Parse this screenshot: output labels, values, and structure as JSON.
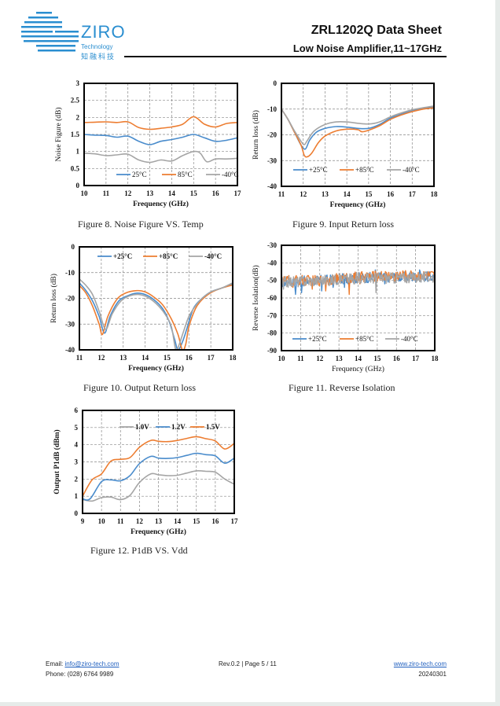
{
  "header": {
    "logo_text": "ZIRO",
    "logo_sub": "Technology",
    "logo_cn": "知融科技",
    "title": "ZRL1202Q Data Sheet",
    "subtitle": "Low Noise Amplifier,11~17GHz"
  },
  "colors": {
    "blue": "#4a8ccc",
    "orange": "#ed7d31",
    "gray": "#a5a5a5",
    "brand": "#2a8ed0"
  },
  "chart_data": [
    {
      "id": "nf",
      "type": "line",
      "caption": "Figure 8. Noise Figure VS. Temp",
      "xlabel": "Frequency (GHz)",
      "ylabel": "Noise Figure (dB)",
      "xlim": [
        10,
        17
      ],
      "ylim": [
        0,
        3
      ],
      "xticks": [
        10,
        11,
        12,
        13,
        14,
        15,
        16,
        17
      ],
      "yticks": [
        0,
        0.5,
        1,
        1.5,
        2,
        2.5,
        3
      ],
      "ytick_labels": [
        "0",
        "0.5",
        "1",
        "1.5",
        "2",
        "2.5",
        "3"
      ],
      "grid": true,
      "legend": "bottom",
      "series": [
        {
          "name": "25°C",
          "color": "#4a8ccc",
          "x": [
            10,
            10.5,
            11,
            11.5,
            12,
            12.5,
            13,
            13.5,
            14,
            14.5,
            15,
            15.5,
            16,
            16.5,
            17
          ],
          "y": [
            1.5,
            1.48,
            1.47,
            1.42,
            1.45,
            1.3,
            1.2,
            1.3,
            1.35,
            1.42,
            1.5,
            1.4,
            1.3,
            1.33,
            1.4
          ]
        },
        {
          "name": "85°C",
          "color": "#ed7d31",
          "x": [
            10,
            10.5,
            11,
            11.5,
            12,
            12.5,
            13,
            13.5,
            14,
            14.5,
            15,
            15.5,
            16,
            16.5,
            17
          ],
          "y": [
            1.85,
            1.86,
            1.87,
            1.85,
            1.87,
            1.7,
            1.65,
            1.68,
            1.72,
            1.8,
            2.02,
            1.8,
            1.72,
            1.82,
            1.85
          ]
        },
        {
          "name": "-40°C",
          "color": "#a5a5a5",
          "x": [
            10,
            10.5,
            11,
            11.5,
            12,
            12.5,
            13,
            13.5,
            14,
            14.5,
            15,
            15.3,
            15.6,
            16,
            16.5,
            17
          ],
          "y": [
            0.95,
            0.93,
            0.88,
            0.9,
            0.92,
            0.75,
            0.68,
            0.75,
            0.72,
            0.88,
            1.0,
            0.95,
            0.7,
            0.78,
            0.78,
            0.8
          ]
        }
      ],
      "legend_style": "normal"
    },
    {
      "id": "irl",
      "type": "line",
      "caption": "Figure 9. Input Return loss",
      "xlabel": "Frequency (GHz)",
      "ylabel": "Return loss (dB)",
      "xlim": [
        11,
        18
      ],
      "ylim": [
        -40,
        0
      ],
      "xticks": [
        11,
        12,
        13,
        14,
        15,
        16,
        17,
        18
      ],
      "yticks": [
        -40,
        -30,
        -20,
        -10,
        0
      ],
      "ytick_labels": [
        "-40",
        "-30",
        "-20",
        "-10",
        "0"
      ],
      "grid": true,
      "legend": "bottom",
      "series": [
        {
          "name": "+25°C",
          "color": "#4a8ccc",
          "x": [
            11,
            11.3,
            11.6,
            11.9,
            12.1,
            12.3,
            12.6,
            13,
            13.5,
            14,
            14.5,
            15,
            15.5,
            16,
            16.5,
            17,
            17.5,
            18
          ],
          "y": [
            -10,
            -14,
            -19,
            -24,
            -25.5,
            -22,
            -19,
            -17.5,
            -16.8,
            -17,
            -17.5,
            -17.5,
            -16,
            -13.5,
            -12,
            -10.5,
            -9.8,
            -9.2
          ]
        },
        {
          "name": "+85°C",
          "color": "#ed7d31",
          "x": [
            11,
            11.3,
            11.6,
            11.9,
            12.05,
            12.2,
            12.4,
            12.7,
            13,
            13.5,
            14,
            14.5,
            14.7,
            15,
            15.5,
            16,
            16.5,
            17,
            17.5,
            18
          ],
          "y": [
            -10,
            -14,
            -19,
            -24,
            -28,
            -28.5,
            -27,
            -23,
            -20.5,
            -18.5,
            -17.8,
            -18,
            -18.8,
            -18.2,
            -16.5,
            -14,
            -12.3,
            -11,
            -10,
            -9.5
          ]
        },
        {
          "name": "-40°C",
          "color": "#a5a5a5",
          "x": [
            11,
            11.3,
            11.6,
            11.9,
            12.05,
            12.2,
            12.5,
            13,
            13.5,
            14,
            14.5,
            15,
            15.5,
            16,
            16.5,
            17,
            17.5,
            18
          ],
          "y": [
            -10,
            -14,
            -18.5,
            -22.5,
            -23.8,
            -22,
            -18.5,
            -16,
            -15,
            -15,
            -15.5,
            -15.8,
            -15,
            -13,
            -11.5,
            -10.3,
            -9.5,
            -8.8
          ]
        }
      ],
      "legend_style": "normal"
    },
    {
      "id": "orl",
      "type": "line",
      "caption": "Figure 10. Output Return loss",
      "xlabel": "Frequency (GHz)",
      "ylabel": "Return loss (dB)",
      "xlim": [
        11,
        18
      ],
      "ylim": [
        -40,
        0
      ],
      "xticks": [
        11,
        12,
        13,
        14,
        15,
        16,
        17,
        18
      ],
      "yticks": [
        -40,
        -30,
        -20,
        -10,
        0
      ],
      "ytick_labels": [
        "-40",
        "-30",
        "-20",
        "-10",
        "0"
      ],
      "grid": true,
      "legend": "top",
      "series": [
        {
          "name": "+25°C",
          "color": "#4a8ccc",
          "x": [
            11,
            11.3,
            11.6,
            11.9,
            12.15,
            12.4,
            12.8,
            13.2,
            13.6,
            14,
            14.4,
            14.8,
            15.1,
            15.35,
            15.5,
            15.7,
            15.9,
            16.2,
            16.6,
            17,
            17.5,
            18
          ],
          "y": [
            -14,
            -17,
            -21,
            -27,
            -33.5,
            -27,
            -21,
            -19,
            -18,
            -18.5,
            -20.5,
            -24,
            -29,
            -36,
            -40,
            -37,
            -32,
            -24,
            -20,
            -17.5,
            -16,
            -14.5
          ]
        },
        {
          "name": "+85°C",
          "color": "#ed7d31",
          "x": [
            11,
            11.3,
            11.6,
            11.9,
            12.05,
            12.3,
            12.7,
            13.1,
            13.6,
            14,
            14.4,
            14.8,
            15.2,
            15.5,
            15.7,
            15.85,
            16,
            16.3,
            16.6,
            17,
            17.5,
            18
          ],
          "y": [
            -15,
            -18,
            -23,
            -30,
            -34,
            -27,
            -20.5,
            -18,
            -17,
            -17.5,
            -19.5,
            -22.5,
            -28,
            -34,
            -40,
            -38,
            -31,
            -24,
            -20.5,
            -17.8,
            -16,
            -14.8
          ]
        },
        {
          "name": "-40°C",
          "color": "#a5a5a5",
          "x": [
            11,
            11.3,
            11.6,
            11.9,
            12.2,
            12.5,
            12.9,
            13.3,
            13.7,
            14.1,
            14.5,
            14.9,
            15.2,
            15.4,
            15.55,
            15.75,
            16,
            16.3,
            16.6,
            17,
            17.5,
            18
          ],
          "y": [
            -12.5,
            -15,
            -18.5,
            -25,
            -32,
            -26,
            -21,
            -19,
            -18.5,
            -19.5,
            -22,
            -26,
            -31,
            -40,
            -38,
            -33,
            -27,
            -23,
            -20,
            -17.5,
            -16,
            -14
          ]
        }
      ],
      "legend_style": "bold"
    },
    {
      "id": "iso",
      "type": "line",
      "caption": "Figure 11. Reverse Isolation",
      "xlabel": "Frequency (GHz)",
      "ylabel": "Reverse Isolation(dB)",
      "xlim": [
        10,
        18
      ],
      "ylim": [
        -90,
        -30
      ],
      "xticks": [
        10,
        11,
        12,
        13,
        14,
        15,
        16,
        17,
        18
      ],
      "yticks": [
        -90,
        -80,
        -70,
        -60,
        -50,
        -40,
        -30
      ],
      "ytick_labels": [
        "-90",
        "-80",
        "-70",
        "-60",
        "-50",
        "-40",
        "-30"
      ],
      "grid": true,
      "legend": "bottom",
      "noisy": true,
      "series": [
        {
          "name": "+25°C",
          "color": "#4a8ccc",
          "trend": [
            [
              10,
              -51
            ],
            [
              12,
              -50
            ],
            [
              14,
              -48.5
            ],
            [
              16,
              -48
            ],
            [
              18,
              -48
            ]
          ],
          "spikes": [
            [
              10.75,
              -58
            ],
            [
              11.05,
              -57
            ],
            [
              12.1,
              -56
            ],
            [
              12.7,
              -54
            ],
            [
              13.3,
              -54
            ],
            [
              14.9,
              -44
            ],
            [
              15.4,
              -52
            ],
            [
              17.2,
              -44
            ]
          ],
          "amp": 3
        },
        {
          "name": "+85°C",
          "color": "#ed7d31",
          "trend": [
            [
              10,
              -50
            ],
            [
              12,
              -50
            ],
            [
              14,
              -48
            ],
            [
              16,
              -47
            ],
            [
              18,
              -47.5
            ]
          ],
          "spikes": [
            [
              10.6,
              -54
            ],
            [
              11.6,
              -55
            ],
            [
              12.3,
              -56
            ],
            [
              12.9,
              -51
            ],
            [
              13.55,
              -58
            ],
            [
              14.1,
              -52
            ],
            [
              15.9,
              -51
            ]
          ],
          "amp": 3
        },
        {
          "name": "-40°C",
          "color": "#a5a5a5",
          "trend": [
            [
              10,
              -51
            ],
            [
              12,
              -50
            ],
            [
              14,
              -48.5
            ],
            [
              16,
              -48.5
            ],
            [
              18,
              -48
            ]
          ],
          "spikes": [
            [
              10.1,
              -55
            ],
            [
              11.2,
              -53
            ],
            [
              12.5,
              -53
            ],
            [
              13.8,
              -52
            ],
            [
              14.95,
              -57
            ],
            [
              16.5,
              -51
            ]
          ],
          "amp": 3.2
        }
      ],
      "legend_style": "normal"
    },
    {
      "id": "p1db",
      "type": "line",
      "caption": "Figure 12. P1dB VS. Vdd",
      "xlabel": "Frequency (GHz)",
      "ylabel": "Output P1dB (dBm)",
      "xlim": [
        9,
        17
      ],
      "ylim": [
        0,
        6
      ],
      "xticks": [
        9,
        10,
        11,
        12,
        13,
        14,
        15,
        16,
        17
      ],
      "yticks": [
        0,
        1,
        2,
        3,
        4,
        5,
        6
      ],
      "ytick_labels": [
        "0",
        "1",
        "2",
        "3",
        "4",
        "5",
        "6"
      ],
      "grid": true,
      "legend": "top-right",
      "series": [
        {
          "name": "1.0V",
          "color": "#a5a5a5",
          "x": [
            9,
            9.5,
            10,
            10.5,
            11,
            11.5,
            12,
            12.6,
            13,
            13.5,
            14,
            14.5,
            15,
            15.5,
            16,
            16.5,
            17
          ],
          "y": [
            0.8,
            0.72,
            0.92,
            0.95,
            0.8,
            1.05,
            1.8,
            2.3,
            2.25,
            2.2,
            2.22,
            2.35,
            2.48,
            2.45,
            2.4,
            2.0,
            1.7
          ]
        },
        {
          "name": "1.2V",
          "color": "#4a8ccc",
          "x": [
            9,
            9.4,
            10,
            10.5,
            11,
            11.5,
            12,
            12.6,
            13,
            13.5,
            14,
            14.5,
            15,
            15.5,
            16,
            16.5,
            17
          ],
          "y": [
            0.85,
            0.85,
            1.85,
            1.95,
            1.9,
            2.2,
            2.9,
            3.32,
            3.22,
            3.2,
            3.25,
            3.38,
            3.5,
            3.42,
            3.35,
            2.92,
            3.22
          ]
        },
        {
          "name": "1.5V",
          "color": "#ed7d31",
          "x": [
            9,
            9.5,
            10,
            10.5,
            11,
            11.5,
            12,
            12.6,
            13,
            13.5,
            14,
            14.5,
            15,
            15.5,
            16,
            16.5,
            17
          ],
          "y": [
            1.0,
            1.95,
            2.3,
            3.05,
            3.15,
            3.25,
            3.85,
            4.25,
            4.2,
            4.18,
            4.25,
            4.37,
            4.47,
            4.35,
            4.22,
            3.75,
            4.08
          ]
        }
      ],
      "legend_style": "bold"
    }
  ],
  "footer": {
    "email_label": "Email:",
    "email": "info@ziro-tech.com",
    "phone_label": "Phone:",
    "phone": "(028) 6764 9989",
    "rev": "Rev.0.2 | Page 5 / 11",
    "website": "www.ziro-tech.com",
    "date": "20240301"
  }
}
